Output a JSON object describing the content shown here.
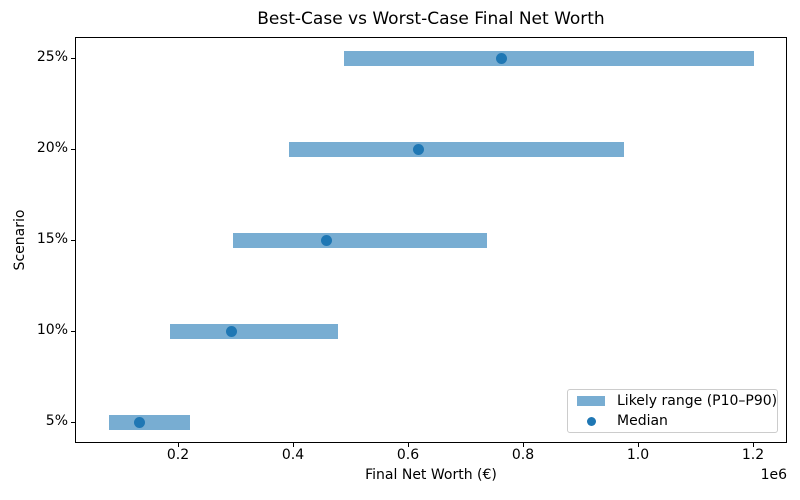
{
  "chart_data": {
    "type": "bar",
    "orientation": "horizontal",
    "title": "Best-Case vs Worst-Case Final Net Worth",
    "xlabel": "Final Net Worth (€)",
    "ylabel": "Scenario",
    "x_offset_label": "1e6",
    "categories": [
      "5%",
      "10%",
      "15%",
      "20%",
      "25%"
    ],
    "series": [
      {
        "name": "Likely range (P10–P90)",
        "kind": "range",
        "p10": [
          78000,
          184000,
          293000,
          392000,
          487000
        ],
        "p90": [
          220000,
          476000,
          735000,
          974000,
          1200000
        ]
      },
      {
        "name": "Median",
        "kind": "point",
        "values": [
          131000,
          292000,
          456000,
          617000,
          760000
        ]
      }
    ],
    "x_tick_values": [
      200000,
      400000,
      600000,
      800000,
      1000000,
      1200000
    ],
    "x_tick_labels": [
      "0.2",
      "0.4",
      "0.6",
      "0.8",
      "1.0",
      "1.2"
    ],
    "xlim": [
      20900,
      1259100
    ],
    "grid": false,
    "legend_position": "lower right",
    "colors": {
      "range_bar": "#78add2",
      "median_dot": "#1f77b4",
      "spine": "#000000",
      "text": "#000000"
    }
  }
}
